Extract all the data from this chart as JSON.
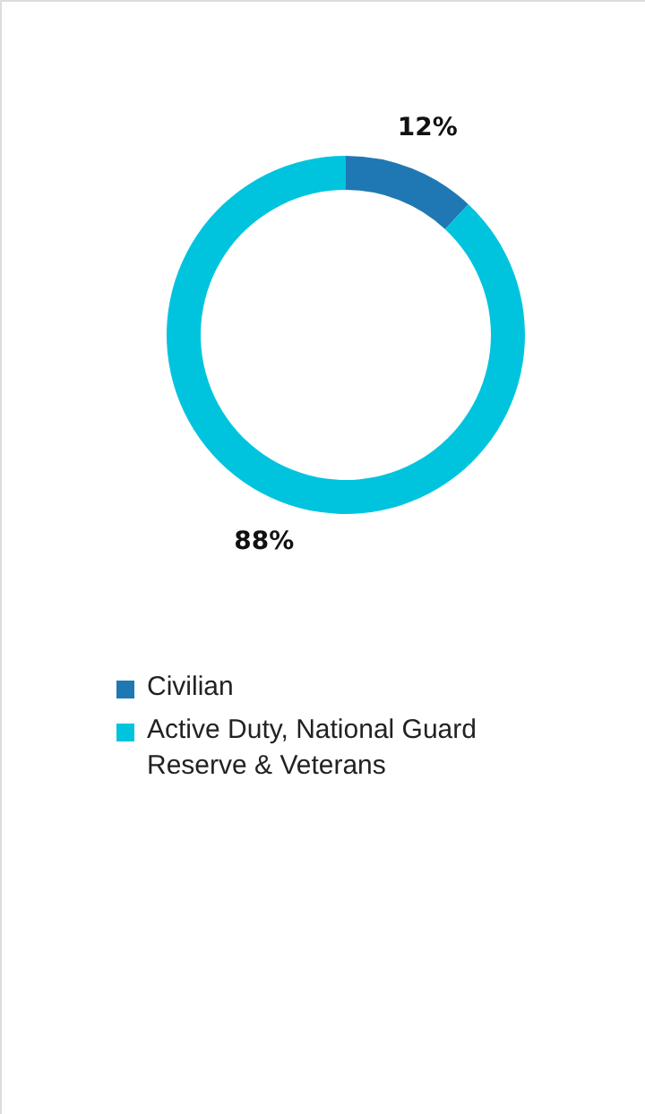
{
  "chart_data": {
    "type": "donut",
    "categories": [
      "Civilian",
      "Active Duty, National Guard Reserve & Veterans"
    ],
    "values": [
      12,
      88
    ],
    "colors": [
      "#1f78b4",
      "#00c4de"
    ],
    "value_labels": [
      "12%",
      "88%"
    ],
    "legend": "bottom left"
  }
}
